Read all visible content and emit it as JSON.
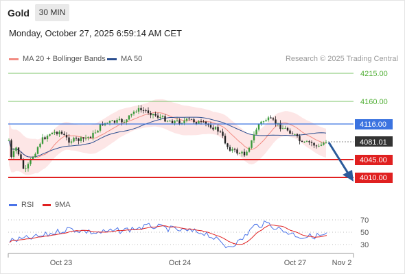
{
  "header": {
    "symbol": "Gold",
    "timeframe": "30 MIN",
    "datetime": "Monday, October 27, 2025 6:59:14 AM CET"
  },
  "legend": {
    "ma20_label": "MA 20 + Bollinger Bands",
    "ma50_label": "MA 50",
    "credit": "Research © 2025 Trading Central",
    "ma20_color": "#f28b82",
    "ma50_color": "#2a4d8f"
  },
  "rsi_legend": {
    "rsi_label": "RSI",
    "ma_label": "9MA",
    "rsi_color": "#4a73e8",
    "ma_color": "#e02020"
  },
  "price_levels": [
    {
      "value": "4215.00",
      "role": "resistance",
      "color": "#4fae33"
    },
    {
      "value": "4160.00",
      "role": "resistance",
      "color": "#4fae33"
    },
    {
      "value": "4116.00",
      "role": "pivot",
      "color": "#3b73e0"
    },
    {
      "value": "4081.01",
      "role": "last-price",
      "color": "#333333"
    },
    {
      "value": "4045.00",
      "role": "support",
      "color": "#e02020"
    },
    {
      "value": "4010.00",
      "role": "support",
      "color": "#e02020"
    }
  ],
  "rsi_ticks": [
    "70",
    "50",
    "30"
  ],
  "x_axis": [
    "Oct 23",
    "Oct 24",
    "Oct 27",
    "Nov 2"
  ],
  "forecast": {
    "direction": "down",
    "color": "#2a5a9a"
  }
}
